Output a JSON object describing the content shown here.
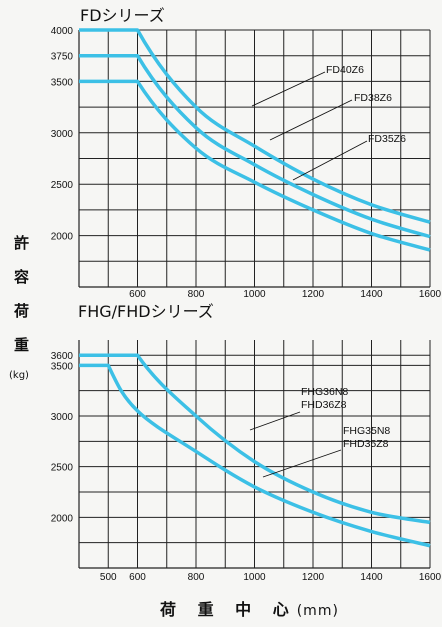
{
  "y_axis_label": [
    "許",
    "容",
    "荷",
    "重"
  ],
  "y_axis_unit": "(kg)",
  "x_axis_label": "荷 重 中 心",
  "x_axis_unit": "(mm)",
  "colors": {
    "curve": "#3cc0e6",
    "grid": "#222222"
  },
  "chart_data": [
    {
      "type": "line",
      "title": "FDシリーズ",
      "xlim": [
        400,
        1600
      ],
      "ylim": [
        1500,
        4000
      ],
      "x_ticks": [
        600,
        800,
        1000,
        1200,
        1400,
        1600
      ],
      "y_ticks": [
        2000,
        2500,
        3000,
        3500,
        3750,
        4000
      ],
      "series": [
        {
          "name": "FD40Z6",
          "x": [
            400,
            600,
            800,
            1000,
            1200,
            1400,
            1600
          ],
          "y": [
            4000,
            4000,
            3250,
            2870,
            2550,
            2300,
            2130
          ]
        },
        {
          "name": "FD38Z6",
          "x": [
            400,
            600,
            800,
            1000,
            1200,
            1400,
            1600
          ],
          "y": [
            3750,
            3750,
            3050,
            2690,
            2400,
            2160,
            1990
          ]
        },
        {
          "name": "FD35Z6",
          "x": [
            400,
            600,
            800,
            1000,
            1200,
            1400,
            1600
          ],
          "y": [
            3500,
            3500,
            2850,
            2520,
            2250,
            2020,
            1860
          ]
        }
      ]
    },
    {
      "type": "line",
      "title": "FHG/FHDシリーズ",
      "xlim": [
        400,
        1600
      ],
      "ylim": [
        1500,
        3750
      ],
      "x_ticks": [
        500,
        600,
        800,
        1000,
        1200,
        1400,
        1600
      ],
      "y_ticks": [
        2000,
        2500,
        3000,
        3500,
        3600
      ],
      "series": [
        {
          "name": "FHG36N8 FHD36Z8",
          "x": [
            400,
            600,
            800,
            1000,
            1200,
            1400,
            1600
          ],
          "y": [
            3600,
            3600,
            3000,
            2550,
            2250,
            2050,
            1950
          ]
        },
        {
          "name": "FHG35N8 FHD35Z8",
          "x": [
            400,
            500,
            600,
            800,
            1000,
            1200,
            1400,
            1600
          ],
          "y": [
            3500,
            3500,
            3050,
            2650,
            2300,
            2050,
            1860,
            1720
          ]
        }
      ]
    }
  ]
}
